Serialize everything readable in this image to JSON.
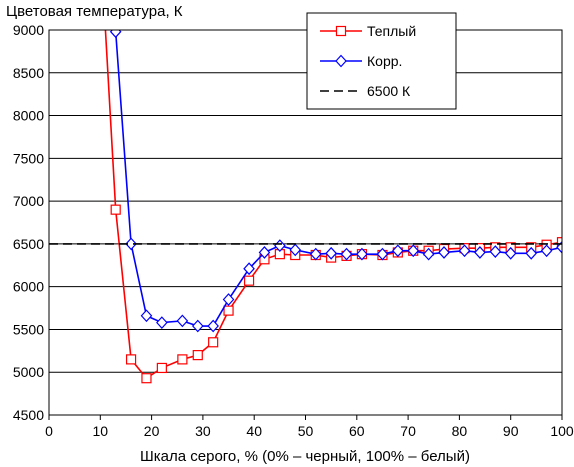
{
  "chart_data": {
    "type": "line",
    "title": "",
    "ylabel": "Цветовая температура, К",
    "xlabel": "Шкала серого, % (0% – черный, 100% – белый)",
    "xlim": [
      0,
      100
    ],
    "ylim": [
      4500,
      9000
    ],
    "x_ticks": [
      0,
      10,
      20,
      30,
      40,
      50,
      60,
      70,
      80,
      90,
      100
    ],
    "y_ticks": [
      4500,
      5000,
      5500,
      6000,
      6500,
      7000,
      7500,
      8000,
      8500,
      9000
    ],
    "grid": "horizontal",
    "legend_position": "top-right",
    "series": [
      {
        "name": "Теплый",
        "color": "#ff0000",
        "marker": "square",
        "x": [
          11,
          13,
          16,
          19,
          22,
          26,
          29,
          32,
          35,
          39,
          42,
          45,
          48,
          52,
          55,
          58,
          61,
          65,
          68,
          71,
          74,
          77,
          81,
          84,
          87,
          90,
          94,
          97,
          100
        ],
        "y": [
          9000,
          6900,
          5150,
          4930,
          5050,
          5150,
          5200,
          5350,
          5720,
          6070,
          6320,
          6380,
          6370,
          6370,
          6340,
          6360,
          6380,
          6370,
          6400,
          6420,
          6420,
          6440,
          6450,
          6450,
          6460,
          6460,
          6460,
          6490,
          6520
        ]
      },
      {
        "name": "Корр.",
        "color": "#0000ff",
        "marker": "diamond",
        "x": [
          12.5,
          13,
          16,
          19,
          22,
          26,
          29,
          32,
          35,
          39,
          42,
          45,
          48,
          52,
          55,
          58,
          61,
          65,
          68,
          71,
          74,
          77,
          81,
          84,
          87,
          90,
          94,
          97,
          100
        ],
        "y": [
          9000,
          8980,
          6500,
          5660,
          5580,
          5600,
          5540,
          5540,
          5850,
          6210,
          6400,
          6480,
          6430,
          6380,
          6390,
          6380,
          6380,
          6380,
          6420,
          6420,
          6380,
          6400,
          6420,
          6400,
          6410,
          6390,
          6390,
          6420,
          6460
        ]
      },
      {
        "name": "6500 К",
        "color": "#000000",
        "style": "dashed",
        "x": [
          0,
          100
        ],
        "y": [
          6500,
          6500
        ]
      }
    ]
  }
}
